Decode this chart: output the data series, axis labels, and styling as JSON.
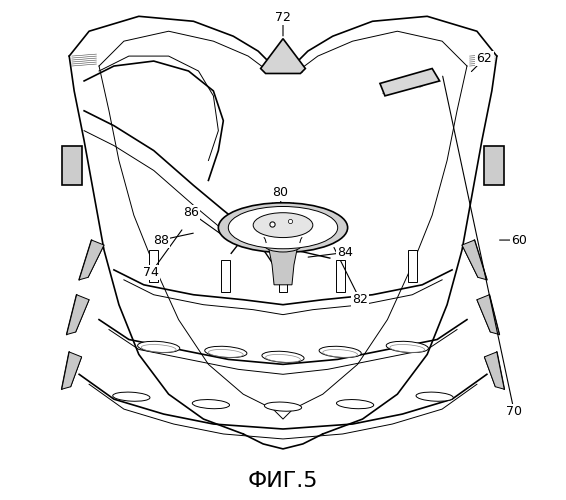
{
  "title": "ФИГ.5",
  "title_fontsize": 16,
  "background_color": "#ffffff",
  "line_color": "#000000",
  "fig_width": 5.66,
  "fig_height": 5.0,
  "dpi": 100
}
